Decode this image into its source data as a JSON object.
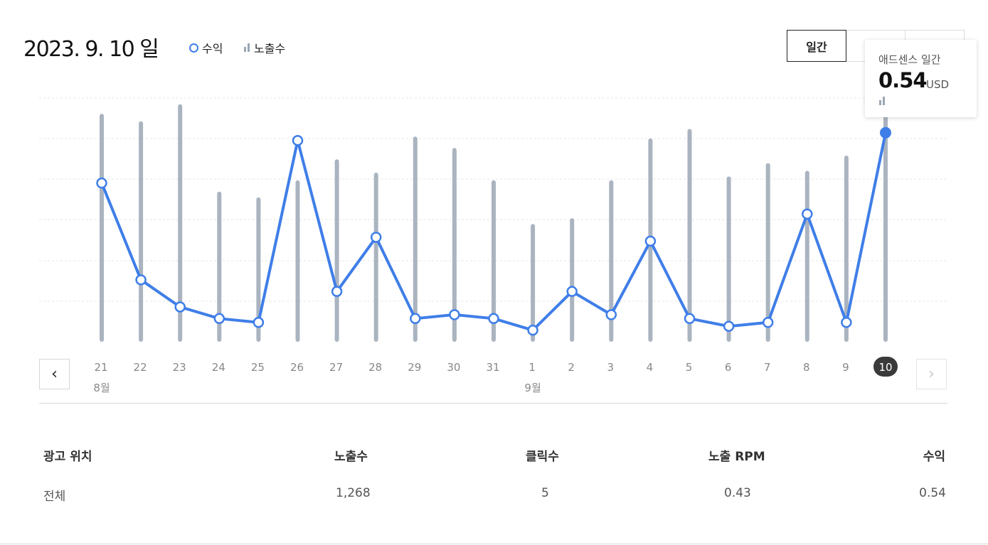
{
  "header": {
    "date_title": "2023. 9. 10 일",
    "legend": [
      {
        "label": "수익",
        "icon": "circle-line-icon",
        "color": "#3f7ee8"
      },
      {
        "label": "노출수",
        "icon": "bar-icon",
        "color": "#aab4c0"
      }
    ],
    "tabs": [
      {
        "label": "일간",
        "active": true
      },
      {
        "label": "",
        "active": false
      },
      {
        "label": "",
        "active": false
      }
    ]
  },
  "tooltip": {
    "label": "애드센스 일간",
    "value": "0.54",
    "unit": "USD"
  },
  "chart_data": {
    "type": "bar+line",
    "categories": [
      "21",
      "22",
      "23",
      "24",
      "25",
      "26",
      "27",
      "28",
      "29",
      "30",
      "31",
      "1",
      "2",
      "3",
      "4",
      "5",
      "6",
      "7",
      "8",
      "9",
      "10"
    ],
    "month_labels": [
      {
        "label": "8월",
        "category_index": 0
      },
      {
        "label": "9월",
        "category_index": 11
      }
    ],
    "selected_index": 20,
    "series": [
      {
        "name": "노출수",
        "kind": "bar",
        "color": "#aab4c0",
        "values": [
          1200,
          1160,
          1250,
          790,
          760,
          850,
          960,
          890,
          1080,
          1020,
          850,
          620,
          650,
          850,
          1070,
          1120,
          870,
          940,
          900,
          980,
          1268
        ]
      },
      {
        "name": "수익",
        "kind": "line",
        "color": "#3f7ee8",
        "values": [
          0.41,
          0.16,
          0.09,
          0.06,
          0.05,
          0.52,
          0.13,
          0.27,
          0.06,
          0.07,
          0.06,
          0.03,
          0.13,
          0.07,
          0.26,
          0.06,
          0.04,
          0.05,
          0.33,
          0.05,
          0.54
        ]
      }
    ],
    "grid": true
  },
  "nav": {
    "prev_symbol": "‹",
    "next_symbol": "›"
  },
  "table": {
    "headers": [
      "광고 위치",
      "노출수",
      "클릭수",
      "노출 RPM",
      "수익"
    ],
    "rows": [
      [
        "전체",
        "1,268",
        "5",
        "0.43",
        "0.54"
      ]
    ]
  },
  "colors": {
    "accent": "#3f7ee8",
    "bar": "#aab4c0",
    "grid": "#e6e6e6",
    "selected_badge": "#3a3a3a"
  }
}
